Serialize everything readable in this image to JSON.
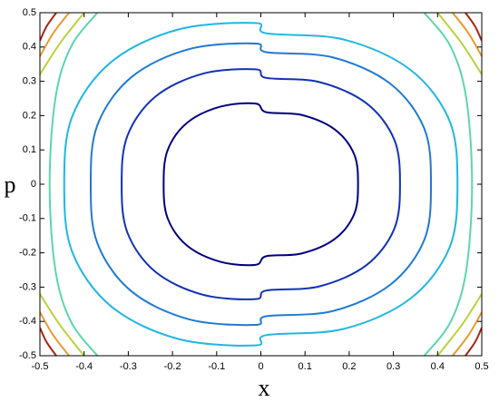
{
  "chart_data": {
    "type": "contour",
    "xlabel": "x",
    "ylabel": "p",
    "xlim": [
      -0.5,
      0.5
    ],
    "ylim": [
      -0.5,
      0.5
    ],
    "xticks": [
      -0.5,
      -0.4,
      -0.3,
      -0.2,
      -0.1,
      0,
      0.1,
      0.2,
      0.3,
      0.4,
      0.5
    ],
    "yticks": [
      -0.5,
      -0.4,
      -0.3,
      -0.2,
      -0.1,
      0,
      0.1,
      0.2,
      0.3,
      0.4,
      0.5
    ],
    "series": [
      {
        "color": "#00007f",
        "x": [
          0.22,
          0.211,
          0.167,
          0.092,
          0.012,
          -0.012,
          -0.092,
          -0.167,
          -0.211,
          -0.22,
          -0.211,
          -0.167,
          -0.092,
          -0.012,
          0.012,
          0.092,
          0.167,
          0.211,
          0.22
        ],
        "y": [
          0,
          0.088,
          0.16,
          0.202,
          0.21,
          0.235,
          0.226,
          0.179,
          0.099,
          0,
          -0.099,
          -0.179,
          -0.226,
          -0.235,
          -0.21,
          -0.202,
          -0.16,
          -0.088,
          0
        ]
      },
      {
        "color": "#1232b4",
        "x": [
          0.315,
          0.302,
          0.239,
          0.132,
          0.012,
          -0.012,
          -0.132,
          -0.239,
          -0.302,
          -0.315,
          -0.302,
          -0.239,
          -0.132,
          -0.012,
          0.012,
          0.132,
          0.239,
          0.302,
          0.315
        ],
        "y": [
          0,
          0.13,
          0.236,
          0.298,
          0.31,
          0.335,
          0.322,
          0.255,
          0.141,
          0,
          -0.141,
          -0.255,
          -0.322,
          -0.335,
          -0.31,
          -0.298,
          -0.236,
          -0.13,
          0
        ]
      },
      {
        "color": "#1f7ad2",
        "x": [
          0.385,
          0.37,
          0.293,
          0.162,
          0.012,
          -0.012,
          -0.162,
          -0.293,
          -0.37,
          -0.385,
          -0.37,
          -0.293,
          -0.162,
          -0.012,
          0.012,
          0.162,
          0.293,
          0.37,
          0.385
        ],
        "y": [
          0,
          0.162,
          0.293,
          0.37,
          0.385,
          0.41,
          0.394,
          0.312,
          0.172,
          0,
          -0.172,
          -0.312,
          -0.394,
          -0.41,
          -0.385,
          -0.37,
          -0.293,
          -0.162,
          0
        ]
      },
      {
        "color": "#22b6e0",
        "x": [
          0.445,
          0.427,
          0.338,
          0.187,
          0.012,
          -0.012,
          -0.187,
          -0.338,
          -0.427,
          -0.445,
          -0.427,
          -0.338,
          -0.187,
          -0.012,
          0.012,
          0.187,
          0.338,
          0.427,
          0.445
        ],
        "y": [
          0,
          0.185,
          0.334,
          0.422,
          0.44,
          0.47,
          0.451,
          0.357,
          0.197,
          0,
          -0.197,
          -0.357,
          -0.451,
          -0.47,
          -0.44,
          -0.422,
          -0.334,
          -0.185,
          0
        ]
      },
      {
        "color": "#5cd6aa",
        "x": [
          -0.37,
          -0.43,
          -0.465,
          -0.478,
          -0.465,
          -0.43,
          -0.37
        ],
        "y": [
          0.5,
          0.4,
          0.25,
          0,
          -0.25,
          -0.4,
          -0.5
        ]
      },
      {
        "color": "#5cd6aa",
        "x": [
          0.37,
          0.43,
          0.465,
          0.478,
          0.465,
          0.43,
          0.37
        ],
        "y": [
          0.5,
          0.4,
          0.25,
          0,
          -0.25,
          -0.4,
          -0.5
        ]
      },
      {
        "color": "#b8d23c",
        "x": [
          -0.4,
          -0.455,
          -0.5
        ],
        "y": [
          0.5,
          0.41,
          0.32
        ]
      },
      {
        "color": "#b8d23c",
        "x": [
          0.4,
          0.455,
          0.5
        ],
        "y": [
          0.5,
          0.41,
          0.32
        ]
      },
      {
        "color": "#b8d23c",
        "x": [
          -0.4,
          -0.455,
          -0.5
        ],
        "y": [
          -0.5,
          -0.41,
          -0.32
        ]
      },
      {
        "color": "#b8d23c",
        "x": [
          0.4,
          0.455,
          0.5
        ],
        "y": [
          -0.5,
          -0.41,
          -0.32
        ]
      },
      {
        "color": "#e89a30",
        "x": [
          -0.434,
          -0.47,
          -0.5
        ],
        "y": [
          0.5,
          0.44,
          0.373
        ]
      },
      {
        "color": "#e89a30",
        "x": [
          0.434,
          0.47,
          0.5
        ],
        "y": [
          0.5,
          0.44,
          0.373
        ]
      },
      {
        "color": "#e89a30",
        "x": [
          -0.434,
          -0.47,
          -0.5
        ],
        "y": [
          -0.5,
          -0.44,
          -0.373
        ]
      },
      {
        "color": "#e89a30",
        "x": [
          0.434,
          0.47,
          0.5
        ],
        "y": [
          -0.5,
          -0.44,
          -0.373
        ]
      },
      {
        "color": "#a82414",
        "x": [
          -0.463,
          -0.485,
          -0.5
        ],
        "y": [
          0.5,
          0.46,
          0.418
        ]
      },
      {
        "color": "#a82414",
        "x": [
          0.463,
          0.485,
          0.5
        ],
        "y": [
          0.5,
          0.46,
          0.418
        ]
      },
      {
        "color": "#a82414",
        "x": [
          -0.463,
          -0.485,
          -0.5
        ],
        "y": [
          -0.5,
          -0.46,
          -0.418
        ]
      },
      {
        "color": "#a82414",
        "x": [
          0.463,
          0.485,
          0.5
        ],
        "y": [
          -0.5,
          -0.46,
          -0.418
        ]
      }
    ]
  }
}
